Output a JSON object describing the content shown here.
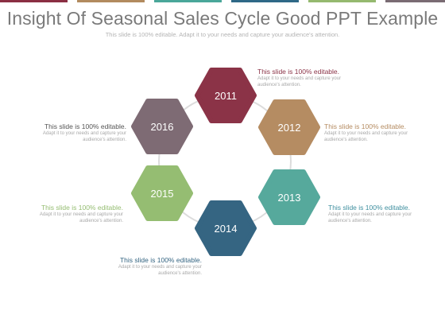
{
  "slide": {
    "title": "Insight Of Seasonal Sales Cycle Good PPT Example",
    "subtitle": "This slide is 100% editable. Adapt it to your needs and capture your audience's attention."
  },
  "top_bar_colors": [
    "#8b2f43",
    "#b28b5f",
    "#4aa79a",
    "#2f6987",
    "#95b96f",
    "#7a6b73"
  ],
  "hexagons": [
    {
      "label": "2011",
      "color": "#8b3347"
    },
    {
      "label": "2012",
      "color": "#b58c62"
    },
    {
      "label": "2013",
      "color": "#56a99c"
    },
    {
      "label": "2014",
      "color": "#356582"
    },
    {
      "label": "2015",
      "color": "#95bd72"
    },
    {
      "label": "2016",
      "color": "#7e6b74"
    }
  ],
  "ring_color": "#dcdcdc",
  "callouts": {
    "c2011": {
      "heading": "This slide is 100% editable.",
      "body": "Adapt it to your needs and capture your audience's attention.",
      "color": "#8b3347"
    },
    "c2012": {
      "heading": "This slide is 100% editable.",
      "body": "Adapt it to your needs and capture your audience's attention.",
      "color": "#b58c62"
    },
    "c2013": {
      "heading": "This slide is 100% editable.",
      "body": "Adapt it to your needs and capture your audience's attention.",
      "color": "#3f8f9f"
    },
    "c2014": {
      "heading": "This slide is 100% editable.",
      "body": "Adapt it to your needs and capture your audience's attention.",
      "color": "#356582"
    },
    "c2015": {
      "heading": "This slide is 100% editable.",
      "body": "Adapt it to your needs and capture your audience's attention.",
      "color": "#95bd72"
    },
    "c2016": {
      "heading": "This slide is 100% editable.",
      "body": "Adapt it to your needs and capture your audience's attention.",
      "color": "#555555"
    }
  }
}
